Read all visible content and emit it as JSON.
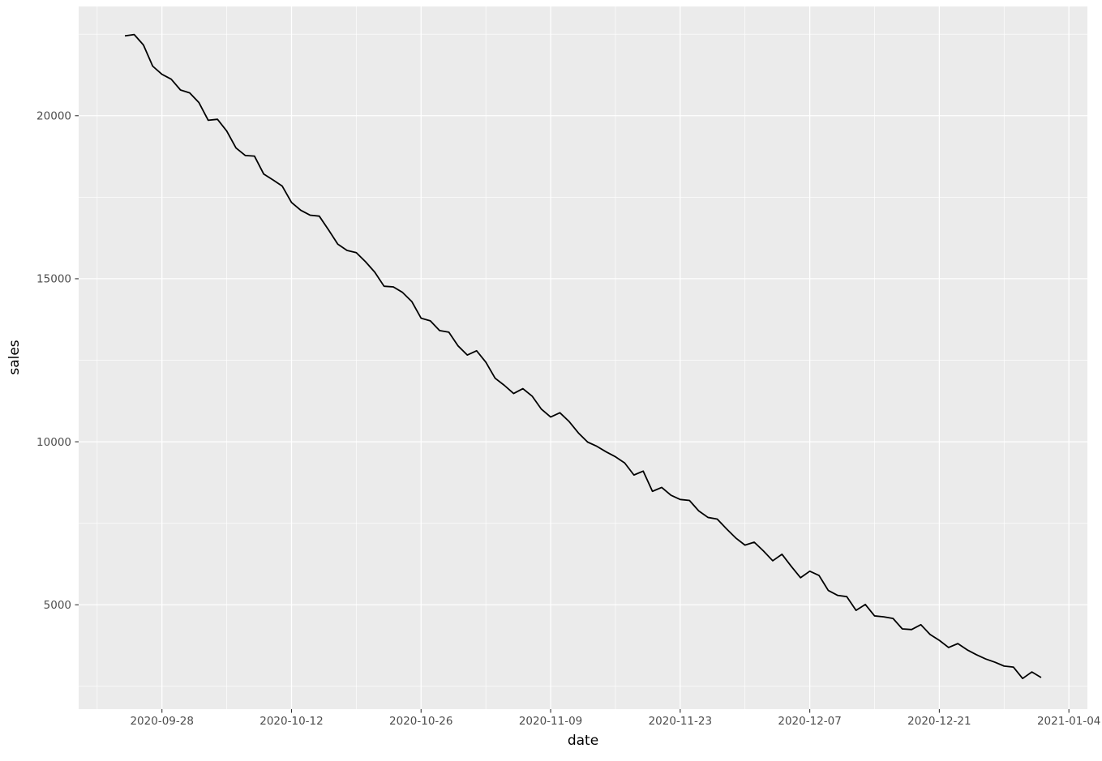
{
  "chart_data": {
    "type": "line",
    "title": "",
    "xlabel": "date",
    "ylabel": "sales",
    "legend": "none",
    "grid": "major and minor, white gridlines on gray panel",
    "xlim": [
      "2020-09-19",
      "2021-01-06"
    ],
    "ylim": [
      1800,
      23350
    ],
    "x_ticks": [
      {
        "date": "2020-09-28",
        "label": "2020-09-28"
      },
      {
        "date": "2020-10-12",
        "label": "2020-10-12"
      },
      {
        "date": "2020-10-26",
        "label": "2020-10-26"
      },
      {
        "date": "2020-11-09",
        "label": "2020-11-09"
      },
      {
        "date": "2020-11-23",
        "label": "2020-11-23"
      },
      {
        "date": "2020-12-07",
        "label": "2020-12-07"
      },
      {
        "date": "2020-12-21",
        "label": "2020-12-21"
      },
      {
        "date": "2021-01-04",
        "label": "2021-01-04"
      }
    ],
    "x_minor_ticks": [
      "2020-09-21",
      "2020-10-05",
      "2020-10-19",
      "2020-11-02",
      "2020-11-16",
      "2020-11-30",
      "2020-12-14",
      "2020-12-28"
    ],
    "y_ticks": [
      {
        "value": 5000,
        "label": "5000"
      },
      {
        "value": 10000,
        "label": "10000"
      },
      {
        "value": 15000,
        "label": "15000"
      },
      {
        "value": 20000,
        "label": "20000"
      }
    ],
    "y_minor_ticks": [
      2500,
      7500,
      12500,
      17500,
      22500
    ],
    "x": [
      "2020-09-24",
      "2020-09-25",
      "2020-09-26",
      "2020-09-27",
      "2020-09-28",
      "2020-09-29",
      "2020-09-30",
      "2020-10-01",
      "2020-10-02",
      "2020-10-03",
      "2020-10-04",
      "2020-10-05",
      "2020-10-06",
      "2020-10-07",
      "2020-10-08",
      "2020-10-09",
      "2020-10-10",
      "2020-10-11",
      "2020-10-12",
      "2020-10-13",
      "2020-10-14",
      "2020-10-15",
      "2020-10-16",
      "2020-10-17",
      "2020-10-18",
      "2020-10-19",
      "2020-10-20",
      "2020-10-21",
      "2020-10-22",
      "2020-10-23",
      "2020-10-24",
      "2020-10-25",
      "2020-10-26",
      "2020-10-27",
      "2020-10-28",
      "2020-10-29",
      "2020-10-30",
      "2020-10-31",
      "2020-11-01",
      "2020-11-02",
      "2020-11-03",
      "2020-11-04",
      "2020-11-05",
      "2020-11-06",
      "2020-11-07",
      "2020-11-08",
      "2020-11-09",
      "2020-11-10",
      "2020-11-11",
      "2020-11-12",
      "2020-11-13",
      "2020-11-14",
      "2020-11-15",
      "2020-11-16",
      "2020-11-17",
      "2020-11-18",
      "2020-11-19",
      "2020-11-20",
      "2020-11-21",
      "2020-11-22",
      "2020-11-23",
      "2020-11-24",
      "2020-11-25",
      "2020-11-26",
      "2020-11-27",
      "2020-11-28",
      "2020-11-29",
      "2020-11-30",
      "2020-12-01",
      "2020-12-02",
      "2020-12-03",
      "2020-12-04",
      "2020-12-05",
      "2020-12-06",
      "2020-12-07",
      "2020-12-08",
      "2020-12-09",
      "2020-12-10",
      "2020-12-11",
      "2020-12-12",
      "2020-12-13",
      "2020-12-14",
      "2020-12-15",
      "2020-12-16",
      "2020-12-17",
      "2020-12-18",
      "2020-12-19",
      "2020-12-20",
      "2020-12-21",
      "2020-12-22",
      "2020-12-23",
      "2020-12-24",
      "2020-12-25",
      "2020-12-26",
      "2020-12-27",
      "2020-12-28",
      "2020-12-29",
      "2020-12-30",
      "2020-12-31",
      "2021-01-01"
    ],
    "series": [
      {
        "name": "sales",
        "values": [
          22450,
          22490,
          22170,
          21520,
          21270,
          21120,
          20790,
          20700,
          20400,
          19860,
          19890,
          19530,
          19010,
          18780,
          18760,
          18210,
          18030,
          17840,
          17340,
          17100,
          16950,
          16920,
          16500,
          16060,
          15870,
          15800,
          15520,
          15200,
          14770,
          14750,
          14580,
          14300,
          13790,
          13710,
          13410,
          13360,
          12940,
          12660,
          12790,
          12440,
          11950,
          11730,
          11480,
          11630,
          11400,
          11000,
          10760,
          10890,
          10620,
          10270,
          9990,
          9860,
          9690,
          9540,
          9350,
          8980,
          9100,
          8480,
          8600,
          8360,
          8230,
          8200,
          7880,
          7680,
          7630,
          7330,
          7050,
          6830,
          6920,
          6650,
          6350,
          6550,
          6180,
          5830,
          6030,
          5900,
          5440,
          5290,
          5250,
          4830,
          5010,
          4660,
          4630,
          4580,
          4260,
          4240,
          4390,
          4090,
          3910,
          3690,
          3810,
          3620,
          3470,
          3340,
          3240,
          3120,
          3090,
          2740,
          2940,
          2770
        ]
      }
    ],
    "colors": {
      "panel_background": "#EBEBEB",
      "gridline": "#FFFFFF",
      "line": "#000000",
      "axis_text": "#4D4D4D",
      "tick_mark": "#333333",
      "outer_background": "#FFFFFF",
      "axis_title": "#000000"
    }
  }
}
